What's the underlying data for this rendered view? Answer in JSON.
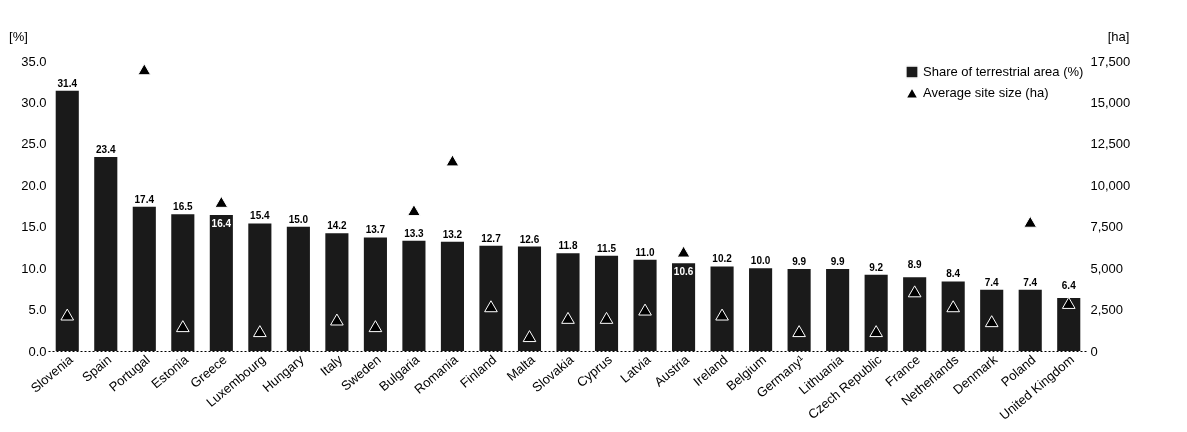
{
  "chart_data": {
    "type": "bar",
    "ylabel": "[%]",
    "y2label": "[ha]",
    "categories": [
      "Slovenia",
      "Spain",
      "Portugal",
      "Estonia",
      "Greece",
      "Luxembourg",
      "Hungary",
      "Italy",
      "Sweden",
      "Bulgaria",
      "Romania",
      "Finland",
      "Malta",
      "Slovakia",
      "Cyprus",
      "Latvia",
      "Austria",
      "Ireland",
      "Belgium",
      "Germany¹",
      "Lithuania",
      "Czech Republic",
      "France",
      "Netherlands",
      "Denmark",
      "Poland",
      "United Kingdom"
    ],
    "series": [
      {
        "name": "Share of terrestrial area (%)",
        "color": "#1a1a1a",
        "values": [
          31.4,
          23.4,
          17.4,
          16.5,
          16.4,
          15.4,
          15.0,
          14.2,
          13.7,
          13.3,
          13.2,
          12.7,
          12.6,
          11.8,
          11.5,
          11.0,
          10.6,
          10.2,
          10.0,
          9.9,
          9.9,
          9.2,
          8.9,
          8.4,
          7.4,
          7.4,
          6.4
        ],
        "value_labels": [
          "31.4",
          "23.4",
          "17.4",
          "16.5",
          "16.4",
          "15.4",
          "15.0",
          "14.2",
          "13.7",
          "13.3",
          "13.2",
          "12.7",
          "12.6",
          "11.8",
          "11.5",
          "11.0",
          "10.6",
          "10.2",
          "10.0",
          "9.9",
          "9.9",
          "9.2",
          "8.9",
          "8.4",
          "7.4",
          "7.4",
          "6.4"
        ]
      },
      {
        "name": "Average site size (ha)",
        "type": "scatter",
        "axis": "y2",
        "color": "#000000",
        "values": [
          2200,
          null,
          17000,
          1500,
          9000,
          1200,
          null,
          1900,
          1500,
          8500,
          11500,
          2700,
          900,
          2000,
          2000,
          2500,
          6000,
          2200,
          null,
          1200,
          null,
          1200,
          3600,
          2700,
          1800,
          7800,
          2900
        ]
      }
    ],
    "marker": "triangle",
    "ylim": [
      0,
      35
    ],
    "yticks": [
      {
        "value": 0,
        "label": "0.0"
      },
      {
        "value": 5,
        "label": "5.0"
      },
      {
        "value": 10,
        "label": "10.0"
      },
      {
        "value": 15,
        "label": "15.0"
      },
      {
        "value": 20,
        "label": "20.0"
      },
      {
        "value": 25,
        "label": "25.0"
      },
      {
        "value": 30,
        "label": "30.0"
      },
      {
        "value": 35,
        "label": "35.0"
      }
    ],
    "y2lim": [
      0,
      17500
    ],
    "y2ticks": [
      0,
      {
        "value": 2500,
        "label": "2,500"
      },
      {
        "value": 5000,
        "label": "5,000"
      },
      {
        "value": 7500,
        "label": "7,500"
      },
      {
        "value": 10000,
        "label": "10,000"
      },
      {
        "value": 12500,
        "label": "12,500"
      },
      {
        "value": 15000,
        "label": "15,000"
      },
      {
        "value": 17500,
        "label": "17,500"
      }
    ],
    "grid": false,
    "legend": "top right"
  }
}
